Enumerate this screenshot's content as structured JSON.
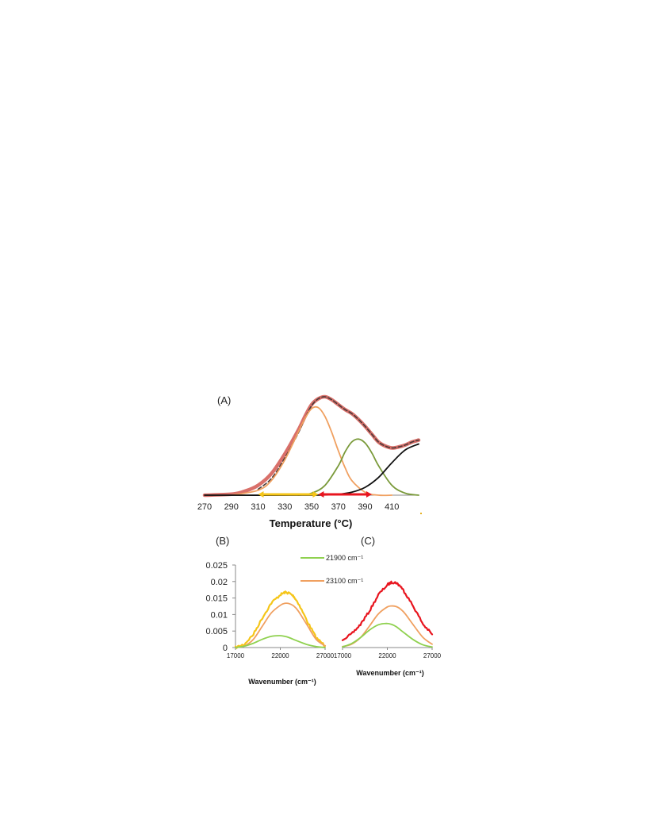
{
  "chart_data": [
    {
      "panel": "(A)",
      "type": "line",
      "xlabel": "Temperature (°C)",
      "ylabel": "",
      "xlim": [
        270,
        430
      ],
      "xticks": [
        "270",
        "290",
        "310",
        "330",
        "350",
        "370",
        "390",
        "410"
      ],
      "ylim": [
        0,
        1.0
      ],
      "grid": false,
      "series": [
        {
          "color": "#d9706a",
          "style": "solid-thick",
          "x": [
            270,
            290,
            300,
            310,
            320,
            330,
            340,
            345,
            350,
            355,
            360,
            365,
            370,
            375,
            380,
            385,
            390,
            395,
            400,
            405,
            410,
            415,
            420,
            425,
            430
          ],
          "y": [
            0.0,
            0.01,
            0.04,
            0.1,
            0.22,
            0.42,
            0.66,
            0.8,
            0.92,
            0.98,
            1.0,
            0.97,
            0.92,
            0.87,
            0.83,
            0.77,
            0.7,
            0.62,
            0.54,
            0.5,
            0.48,
            0.49,
            0.51,
            0.54,
            0.56
          ]
        },
        {
          "color": "#4a3a3a",
          "style": "dashed",
          "x": [
            310,
            320,
            330,
            340,
            345,
            350,
            355,
            360,
            365,
            370,
            375,
            380,
            385,
            390,
            395,
            400,
            405,
            410,
            415,
            420,
            425,
            430
          ],
          "y": [
            0.06,
            0.17,
            0.38,
            0.63,
            0.78,
            0.91,
            0.98,
            1.0,
            0.97,
            0.92,
            0.87,
            0.83,
            0.77,
            0.7,
            0.62,
            0.54,
            0.5,
            0.48,
            0.49,
            0.51,
            0.54,
            0.56
          ]
        },
        {
          "color": "#f0a060",
          "style": "solid",
          "x": [
            290,
            310,
            320,
            330,
            340,
            345,
            350,
            355,
            360,
            365,
            370,
            375,
            380,
            390,
            400,
            410
          ],
          "y": [
            0.0,
            0.05,
            0.15,
            0.36,
            0.64,
            0.78,
            0.88,
            0.89,
            0.8,
            0.64,
            0.45,
            0.28,
            0.15,
            0.03,
            0.0,
            0.0
          ]
        },
        {
          "color": "#7a9a3a",
          "style": "solid",
          "x": [
            340,
            350,
            360,
            370,
            375,
            380,
            385,
            390,
            395,
            400,
            410,
            420,
            430
          ],
          "y": [
            0.0,
            0.02,
            0.1,
            0.3,
            0.44,
            0.54,
            0.57,
            0.53,
            0.43,
            0.3,
            0.1,
            0.02,
            0.0
          ]
        },
        {
          "color": "#111111",
          "style": "solid",
          "x": [
            270,
            350,
            370,
            380,
            390,
            400,
            410,
            420,
            430
          ],
          "y": [
            0.0,
            0.0,
            0.01,
            0.03,
            0.08,
            0.18,
            0.33,
            0.46,
            0.52
          ]
        }
      ],
      "annotations": [
        {
          "type": "range-arrow",
          "color": "#f5c518",
          "from": 310,
          "to": 355
        },
        {
          "type": "range-arrow",
          "color": "#e8141e",
          "from": 355,
          "to": 395
        }
      ]
    },
    {
      "panel": "(B)",
      "type": "line",
      "xlabel": "Wavenumber (cm⁻¹)",
      "ylabel": "",
      "xlim": [
        17000,
        27000
      ],
      "xticks": [
        "17000",
        "22000",
        "27000"
      ],
      "ylim": [
        0,
        0.025
      ],
      "yticks": [
        "0",
        "0.005",
        "0.01",
        "0.015",
        "0.02",
        "0.025"
      ],
      "grid": false,
      "series": [
        {
          "color": "#f5c518",
          "style": "noisy",
          "x": [
            17000,
            18000,
            19000,
            20000,
            21000,
            22000,
            22500,
            23000,
            23500,
            24000,
            25000,
            26000,
            27000
          ],
          "y": [
            0.0,
            0.001,
            0.004,
            0.009,
            0.0135,
            0.016,
            0.0167,
            0.0165,
            0.0155,
            0.0135,
            0.008,
            0.003,
            0.0005
          ]
        },
        {
          "color": "#f0a060",
          "style": "solid",
          "x": [
            17000,
            18000,
            19000,
            20000,
            21000,
            22000,
            22500,
            23000,
            23500,
            24000,
            25000,
            26000,
            27000
          ],
          "y": [
            0.0,
            0.0005,
            0.0025,
            0.0065,
            0.0105,
            0.0128,
            0.0134,
            0.0133,
            0.0126,
            0.0111,
            0.0068,
            0.0025,
            0.0005
          ]
        },
        {
          "color": "#8fd14f",
          "style": "solid",
          "x": [
            17000,
            18000,
            19000,
            20000,
            21000,
            21900,
            22500,
            23000,
            24000,
            25000,
            26000,
            27000
          ],
          "y": [
            0.0,
            0.0004,
            0.0013,
            0.0025,
            0.0034,
            0.0036,
            0.0034,
            0.003,
            0.0019,
            0.0009,
            0.0003,
            0.0
          ]
        }
      ]
    },
    {
      "panel": "(C)",
      "type": "line",
      "xlabel": "Wavenumber (cm⁻¹)",
      "ylabel": "",
      "xlim": [
        17000,
        27000
      ],
      "xticks": [
        "17000",
        "22000",
        "27000"
      ],
      "ylim": [
        0,
        0.025
      ],
      "grid": false,
      "series": [
        {
          "color": "#e8141e",
          "style": "noisy",
          "x": [
            17000,
            18000,
            19000,
            20000,
            21000,
            22000,
            22500,
            23000,
            23500,
            24000,
            25000,
            26000,
            27000
          ],
          "y": [
            0.0025,
            0.004,
            0.007,
            0.011,
            0.016,
            0.019,
            0.0198,
            0.0196,
            0.0185,
            0.0165,
            0.012,
            0.007,
            0.004
          ]
        },
        {
          "color": "#f0a060",
          "style": "solid",
          "x": [
            17000,
            18000,
            19000,
            20000,
            21000,
            22000,
            22500,
            23000,
            23500,
            24000,
            25000,
            26000,
            27000
          ],
          "y": [
            0.0003,
            0.001,
            0.003,
            0.0065,
            0.0102,
            0.0123,
            0.0126,
            0.0124,
            0.0116,
            0.0102,
            0.0065,
            0.003,
            0.001
          ]
        },
        {
          "color": "#8fd14f",
          "style": "solid",
          "x": [
            17000,
            18000,
            19000,
            20000,
            21000,
            21900,
            22500,
            23000,
            24000,
            25000,
            26000,
            27000
          ],
          "y": [
            0.0002,
            0.0012,
            0.003,
            0.0053,
            0.0069,
            0.0073,
            0.007,
            0.0063,
            0.0042,
            0.0022,
            0.0008,
            0.0002
          ]
        }
      ]
    }
  ],
  "legend": {
    "items": [
      {
        "label": "21900 cm⁻¹",
        "color": "#8fd14f"
      },
      {
        "label": "23100 cm⁻¹",
        "color": "#f0a060"
      }
    ]
  }
}
